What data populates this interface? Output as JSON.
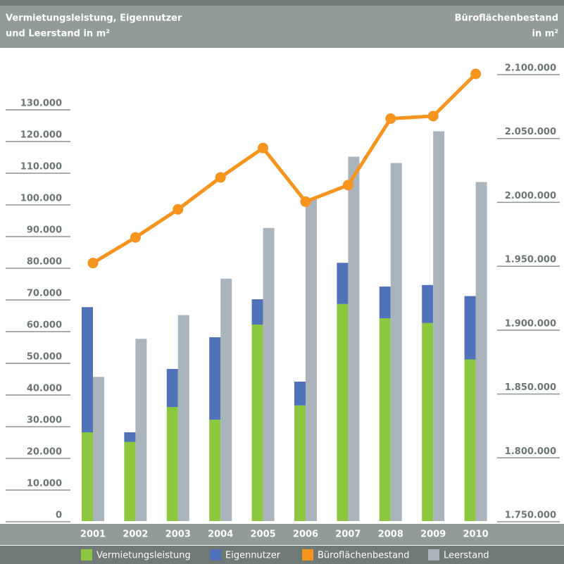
{
  "chart_data": {
    "type": "bar",
    "ylabel": [
      "Vermietungsleistung, Eigennutzer",
      "und Leerstand in m²"
    ],
    "y2label": [
      "Büroflächenbestand",
      "in m²"
    ],
    "categories": [
      "2001",
      "2002",
      "2003",
      "2004",
      "2005",
      "2006",
      "2007",
      "2008",
      "2009",
      "2010"
    ],
    "series": [
      {
        "name": "Vermietungsleistung",
        "color": "#8dc63f",
        "stack": "a",
        "values": [
          28000,
          25000,
          36000,
          32000,
          62000,
          36500,
          68500,
          64000,
          62500,
          51000
        ]
      },
      {
        "name": "Eigennutzer",
        "color": "#4f72b8",
        "stack": "a",
        "values": [
          39500,
          3000,
          12000,
          26000,
          8000,
          7500,
          13000,
          10000,
          12000,
          20000
        ]
      },
      {
        "name": "Büroflächenbestand",
        "color": "#f7941d",
        "type": "line",
        "axis": "y2",
        "values": [
          1952000,
          1972000,
          1994000,
          2019000,
          2042000,
          2000000,
          2013000,
          2065000,
          2067000,
          2100000
        ]
      },
      {
        "name": "Leerstand",
        "color": "#a9b4bd",
        "stack": "b",
        "values": [
          45500,
          57500,
          65000,
          76500,
          92500,
          102000,
          115000,
          113000,
          123000,
          107000
        ]
      }
    ],
    "ylim": [
      0,
      130000
    ],
    "yticks": [
      0,
      {
        "value": 10000,
        "label": "10.000"
      },
      {
        "value": 20000,
        "label": "20.000"
      },
      {
        "value": 30000,
        "label": "30.000"
      },
      {
        "value": 40000,
        "label": "40.000"
      },
      {
        "value": 50000,
        "label": "50.000"
      },
      {
        "value": 60000,
        "label": "60.000"
      },
      {
        "value": 70000,
        "label": "70.000"
      },
      {
        "value": 80000,
        "label": "80.000"
      },
      {
        "value": 90000,
        "label": "90.000"
      },
      {
        "value": 100000,
        "label": "100.000"
      },
      {
        "value": 110000,
        "label": "110.000"
      },
      {
        "value": 120000,
        "label": "120.000"
      },
      {
        "value": 130000,
        "label": "130.000"
      }
    ],
    "y2lim": [
      1750000,
      2100000
    ],
    "y2ticks": [
      {
        "value": 1750000,
        "label": "1.750.000"
      },
      {
        "value": 1800000,
        "label": "1.800.000"
      },
      {
        "value": 1850000,
        "label": "1.850.000"
      },
      {
        "value": 1900000,
        "label": "1.900.000"
      },
      {
        "value": 1950000,
        "label": "1.950.000"
      },
      {
        "value": 2000000,
        "label": "2.000.000"
      },
      {
        "value": 2050000,
        "label": "2.050.000"
      },
      {
        "value": 2100000,
        "label": "2.100.000"
      }
    ],
    "legend": "bottom"
  }
}
